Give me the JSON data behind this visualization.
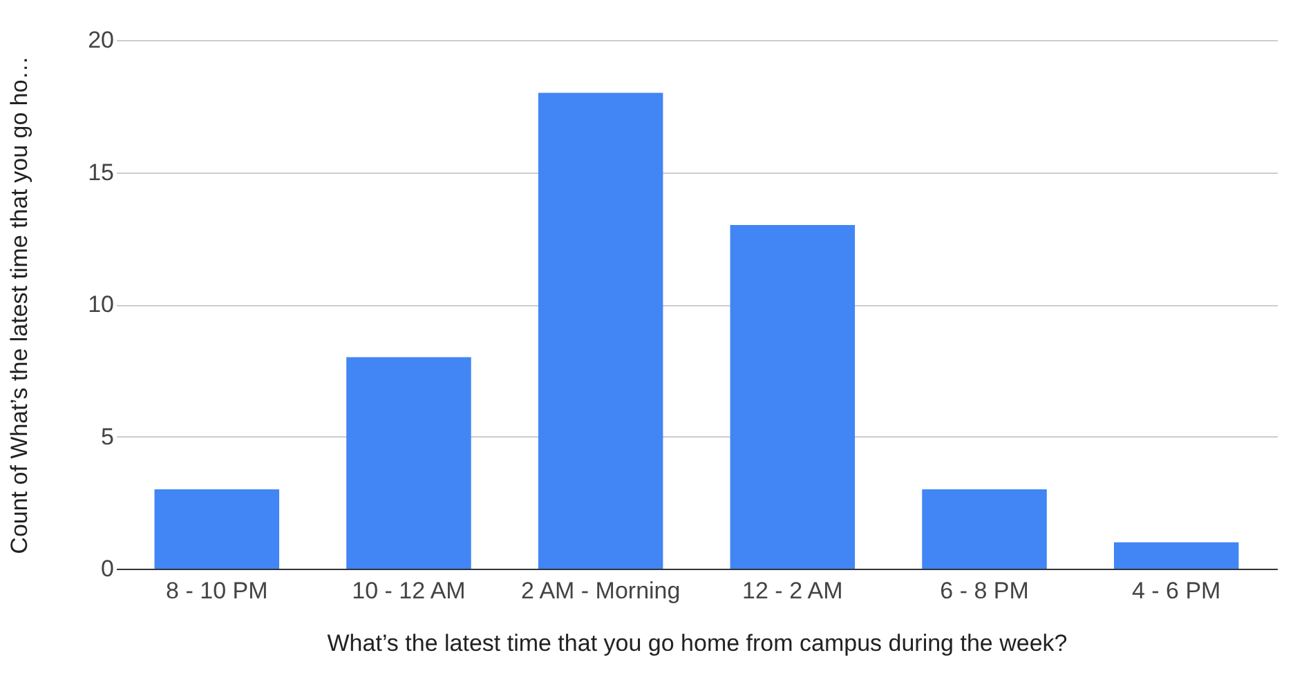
{
  "chart_data": {
    "type": "bar",
    "xlabel": "What’s the latest time that you go home from campus during the week?",
    "ylabel": "Count of What’s the latest time that you go ho…",
    "categories": [
      "8 - 10 PM",
      "10 - 12 AM",
      "2 AM - Morning",
      "12 - 2 AM",
      "6 - 8 PM",
      "4 - 6 PM"
    ],
    "values": [
      3,
      8,
      18,
      13,
      3,
      1
    ],
    "color": "#4285f4",
    "ylim": [
      0,
      20
    ],
    "yticks": [
      0,
      5,
      10,
      15,
      20
    ],
    "grid": "y"
  }
}
